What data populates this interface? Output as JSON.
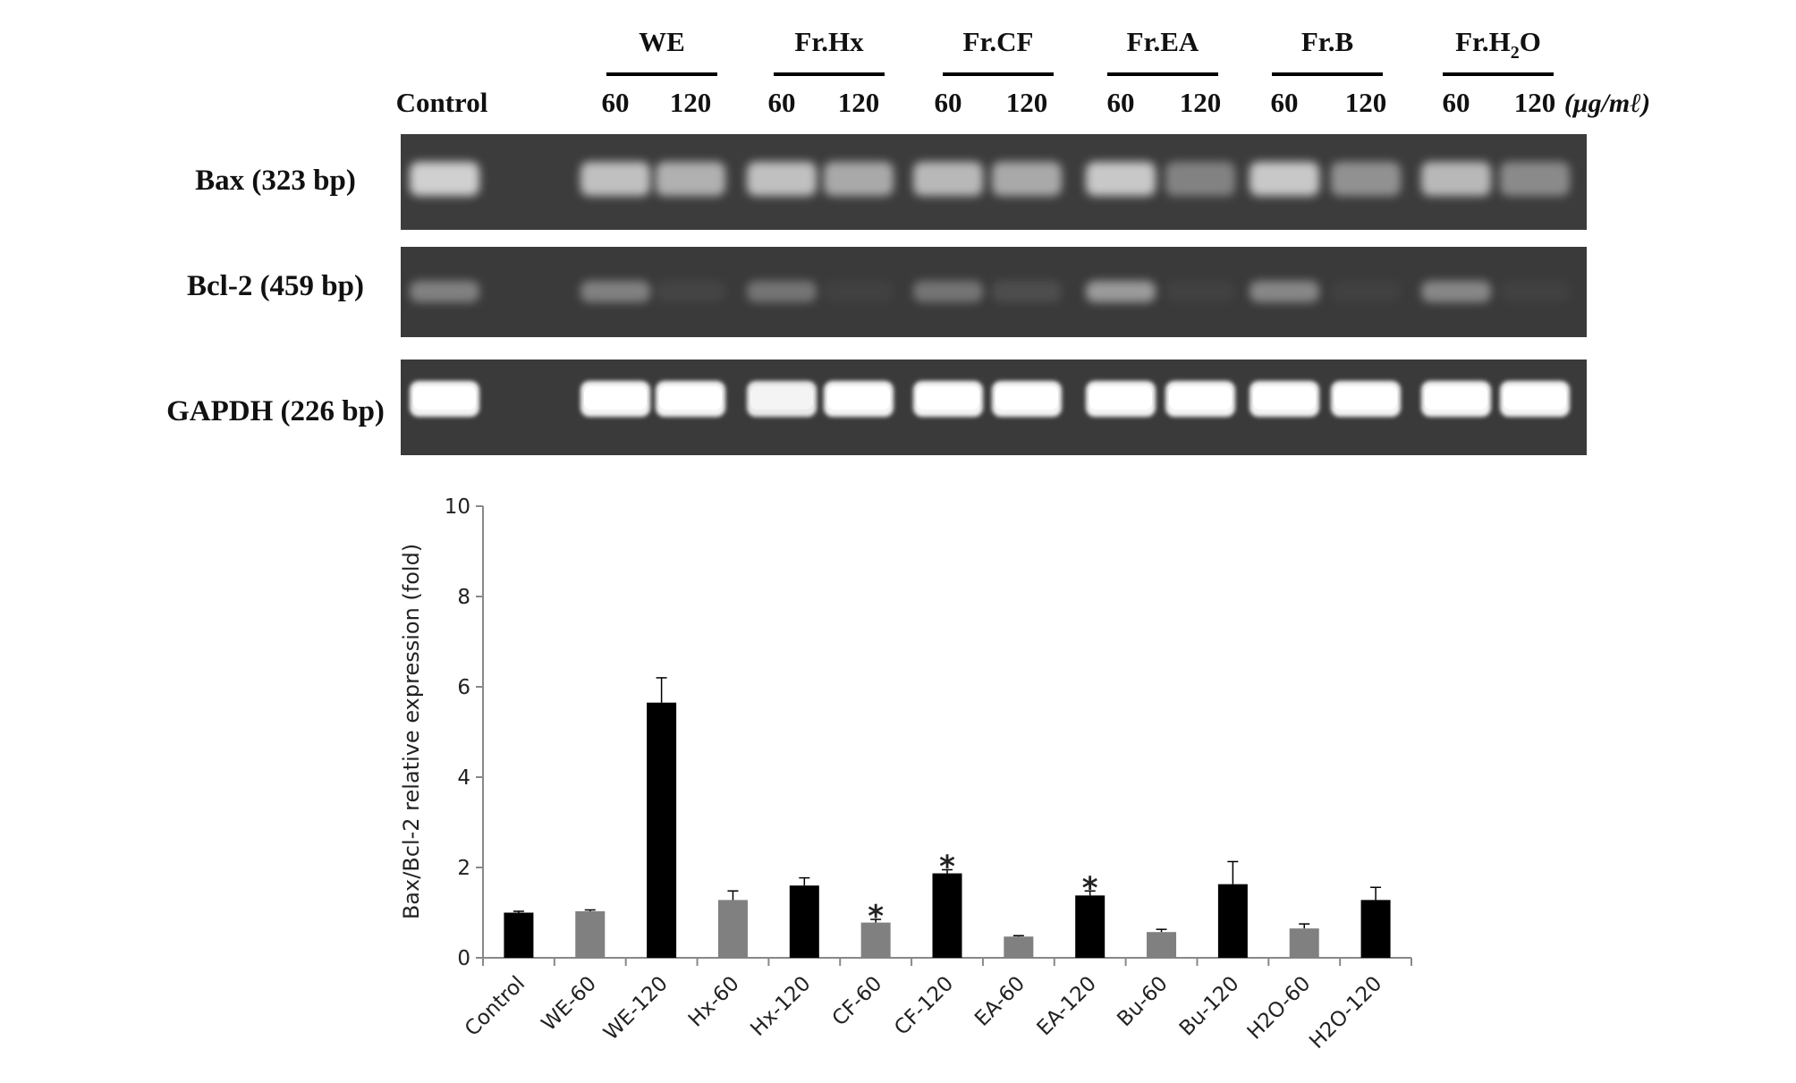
{
  "gel": {
    "control_label": "Control",
    "unit_label": "(μg/mℓ)",
    "groups": [
      {
        "name": "WE",
        "sub": "",
        "suffix": "",
        "doses": [
          "60",
          "120"
        ]
      },
      {
        "name": "Fr.Hx",
        "sub": "",
        "suffix": "",
        "doses": [
          "60",
          "120"
        ]
      },
      {
        "name": "Fr.CF",
        "sub": "",
        "suffix": "",
        "doses": [
          "60",
          "120"
        ]
      },
      {
        "name": "Fr.EA",
        "sub": "",
        "suffix": "",
        "doses": [
          "60",
          "120"
        ]
      },
      {
        "name": "Fr.B",
        "sub": "",
        "suffix": "",
        "doses": [
          "60",
          "120"
        ]
      },
      {
        "name": "Fr.H",
        "sub": "2",
        "suffix": "O",
        "doses": [
          "60",
          "120"
        ]
      }
    ],
    "rows": [
      {
        "label": "Bax (323 bp)",
        "background": "#3c3c3c",
        "band_color": "#d8d8d8",
        "intensities": [
          0.95,
          0.0,
          0.85,
          0.75,
          0.85,
          0.7,
          0.8,
          0.7,
          0.9,
          0.45,
          0.9,
          0.55,
          0.8,
          0.5
        ]
      },
      {
        "label": "Bcl-2 (459 bp)",
        "background": "#3a3a3a",
        "band_color": "#bcbcbc",
        "intensities": [
          0.55,
          0.0,
          0.55,
          0.08,
          0.45,
          0.05,
          0.45,
          0.15,
          0.75,
          0.05,
          0.6,
          0.05,
          0.6,
          0.05
        ]
      },
      {
        "label": "GAPDH (226 bp)",
        "background": "#3a3a3a",
        "band_color": "#f4f4f4",
        "intensities": [
          1.0,
          0.0,
          1.0,
          1.0,
          0.95,
          1.0,
          1.0,
          1.0,
          1.0,
          1.0,
          1.0,
          1.0,
          1.0,
          1.0
        ]
      }
    ]
  },
  "chart_data": {
    "type": "bar",
    "title": "",
    "xlabel": "",
    "ylabel": "Bax/Bcl-2 relative expression (fold)",
    "ylim": [
      0,
      10
    ],
    "yticks": [
      0,
      2,
      4,
      6,
      8,
      10
    ],
    "grid": false,
    "categories": [
      "Control",
      "WE-60",
      "WE-120",
      "Hx-60",
      "Hx-120",
      "CF-60",
      "CF-120",
      "EA-60",
      "EA-120",
      "Bu-60",
      "Bu-120",
      "H2O-60",
      "H2O-120"
    ],
    "values": [
      1.0,
      1.03,
      5.65,
      1.28,
      1.6,
      0.78,
      1.87,
      0.47,
      1.38,
      0.57,
      1.63,
      0.65,
      1.28
    ],
    "errors": [
      0.03,
      0.03,
      0.55,
      0.2,
      0.17,
      0.07,
      0.08,
      0.02,
      0.1,
      0.06,
      0.5,
      0.1,
      0.28
    ],
    "colors": [
      "#000000",
      "#808080",
      "#000000",
      "#808080",
      "#000000",
      "#808080",
      "#000000",
      "#808080",
      "#000000",
      "#808080",
      "#000000",
      "#808080",
      "#000000"
    ],
    "significance": [
      "",
      "",
      "",
      "",
      "",
      "*",
      "*",
      "",
      "*",
      "",
      "",
      "",
      ""
    ]
  }
}
